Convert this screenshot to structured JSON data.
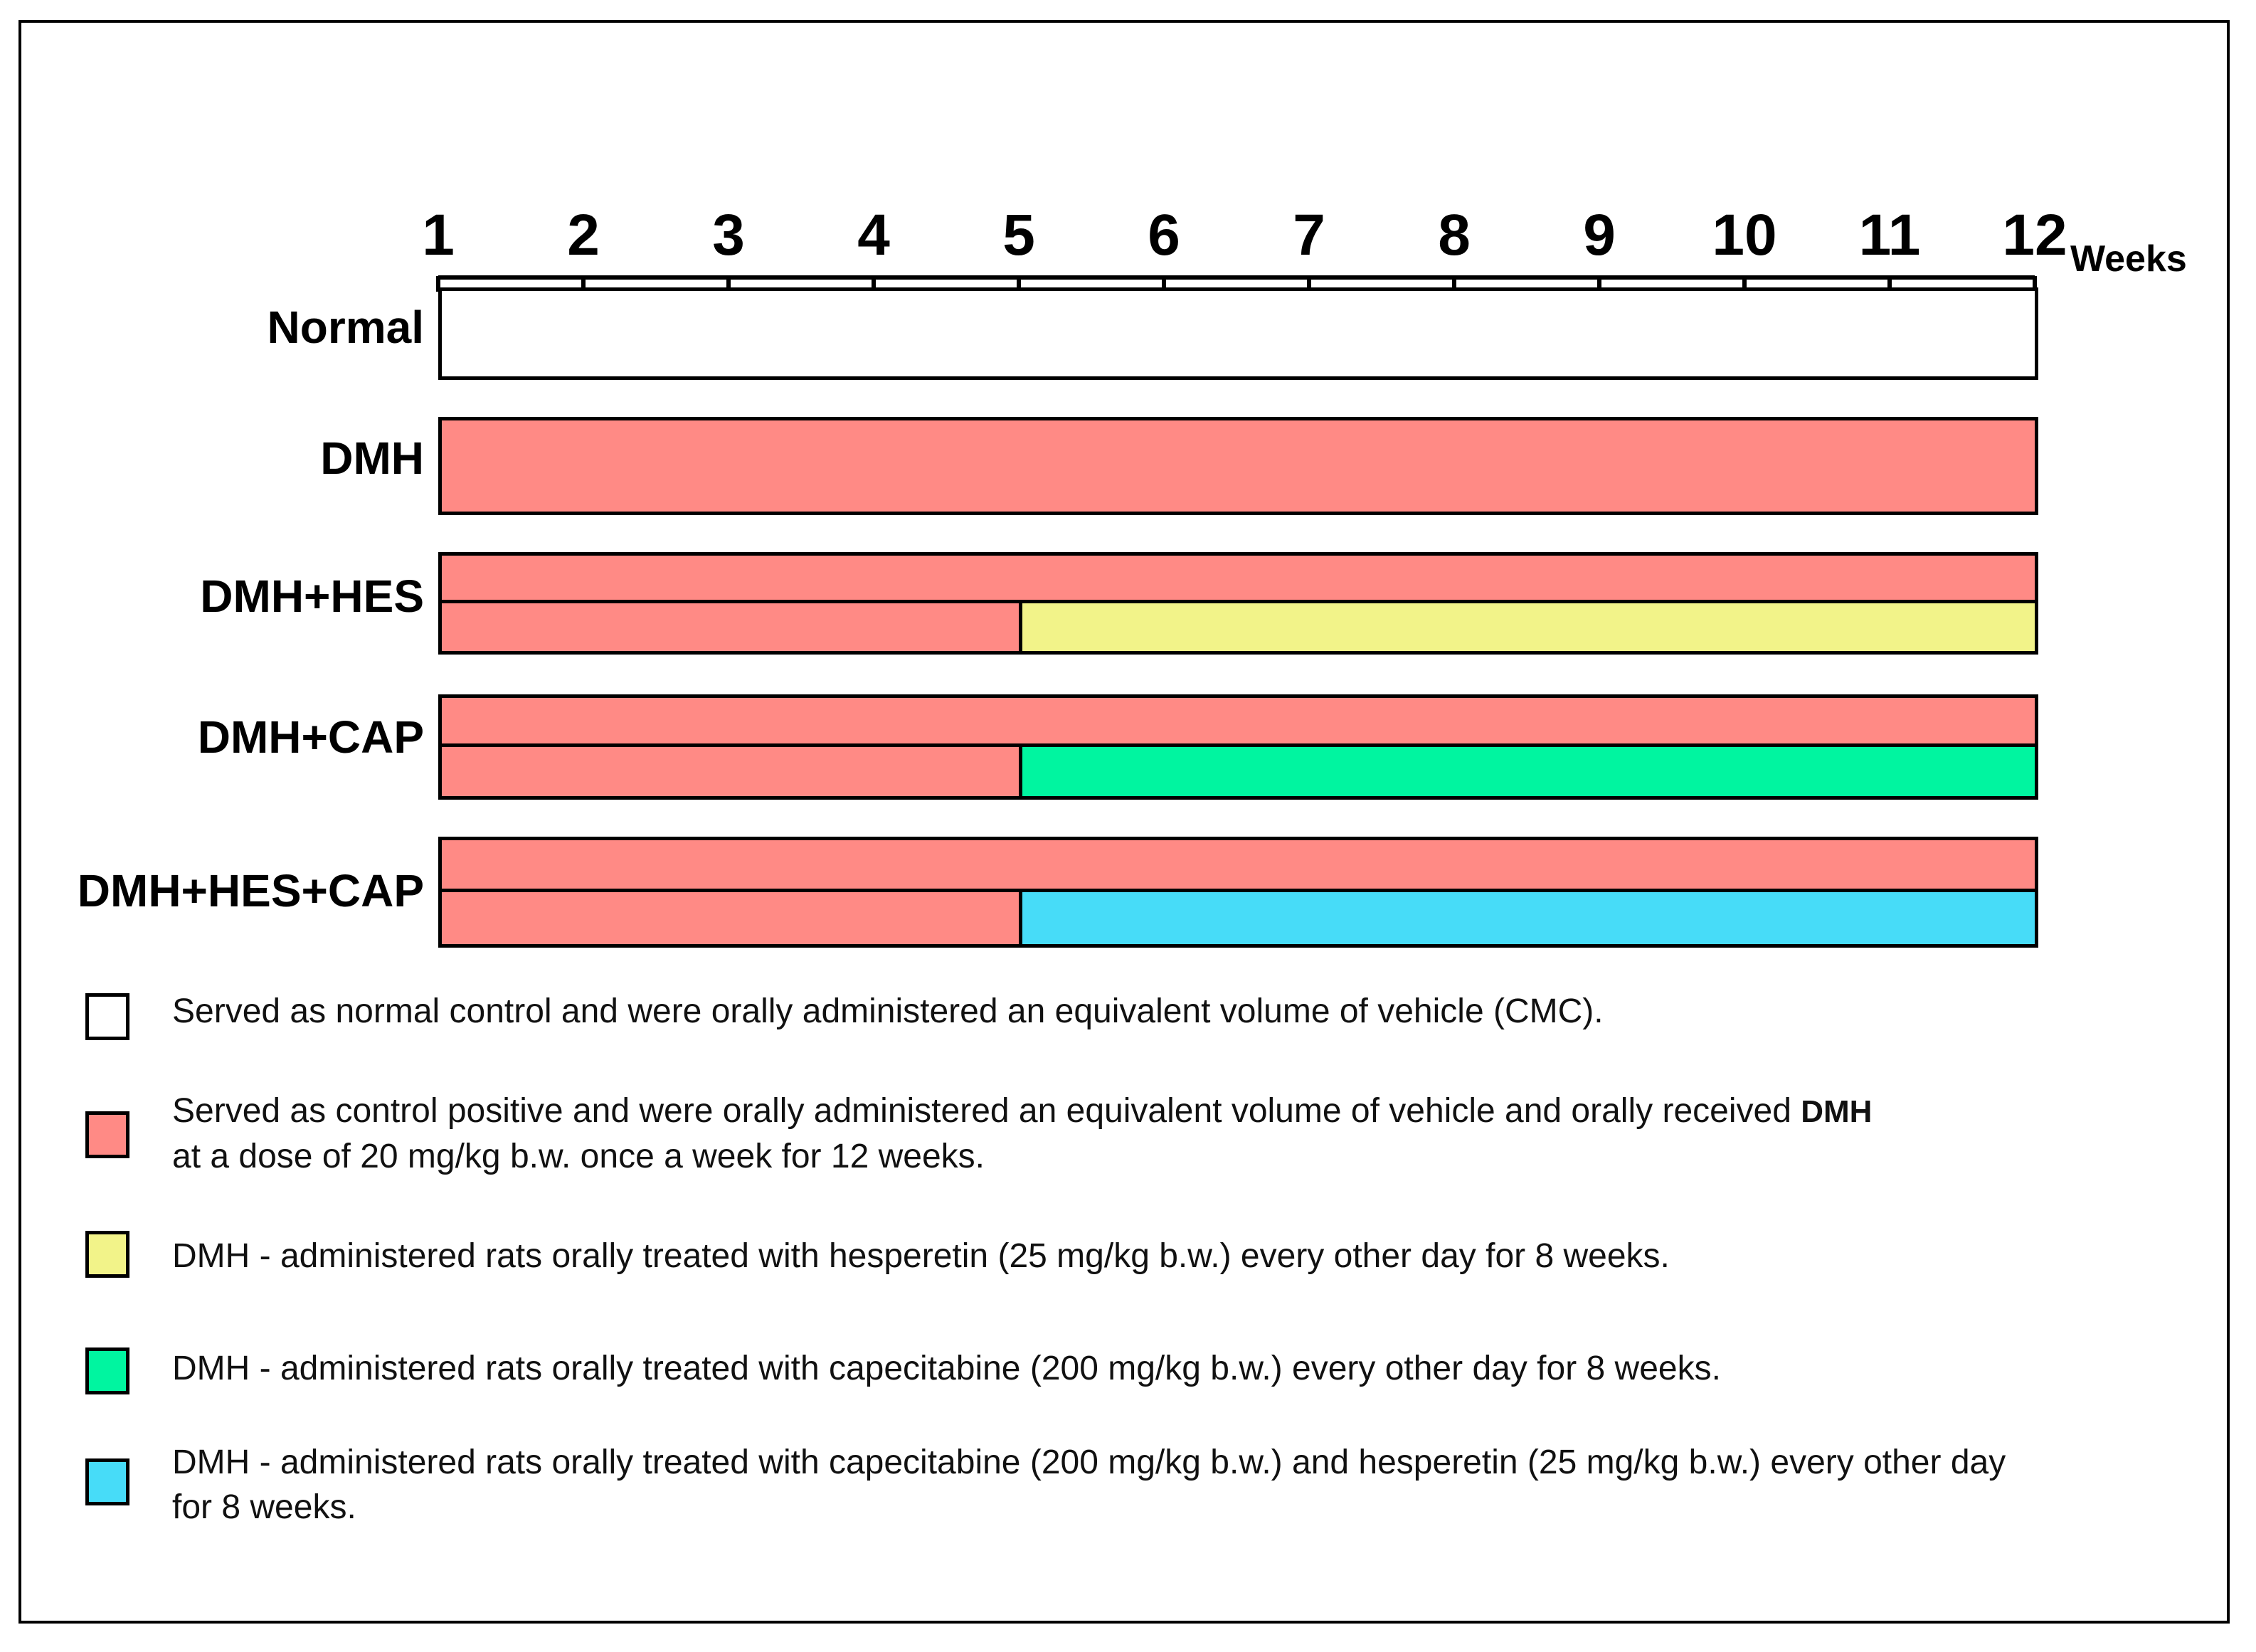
{
  "colors": {
    "normal": "#ffffff",
    "dmh": "#ff8a85",
    "hes": "#f2f389",
    "cap": "#00f5a0",
    "hes_cap": "#47dcf8",
    "outline": "#000000"
  },
  "timeline": {
    "unit": "Weeks",
    "ticks": [
      "1",
      "2",
      "3",
      "4",
      "5",
      "6",
      "7",
      "8",
      "9",
      "10",
      "11",
      "12"
    ]
  },
  "groups": [
    {
      "label": "Normal",
      "rows": [
        {
          "segments": [
            {
              "start": 1,
              "end": 12,
              "color": "normal"
            }
          ]
        }
      ]
    },
    {
      "label": "DMH",
      "rows": [
        {
          "segments": [
            {
              "start": 1,
              "end": 12,
              "color": "dmh"
            }
          ]
        }
      ]
    },
    {
      "label": "DMH+HES",
      "rows": [
        {
          "segments": [
            {
              "start": 1,
              "end": 12,
              "color": "dmh"
            }
          ]
        },
        {
          "segments": [
            {
              "start": 1,
              "end": 5,
              "color": "dmh"
            },
            {
              "start": 5,
              "end": 12,
              "color": "hes"
            }
          ]
        }
      ]
    },
    {
      "label": "DMH+CAP",
      "rows": [
        {
          "segments": [
            {
              "start": 1,
              "end": 12,
              "color": "dmh"
            }
          ]
        },
        {
          "segments": [
            {
              "start": 1,
              "end": 5,
              "color": "dmh"
            },
            {
              "start": 5,
              "end": 12,
              "color": "cap"
            }
          ]
        }
      ]
    },
    {
      "label": "DMH+HES+CAP",
      "rows": [
        {
          "segments": [
            {
              "start": 1,
              "end": 12,
              "color": "dmh"
            }
          ]
        },
        {
          "segments": [
            {
              "start": 1,
              "end": 5,
              "color": "dmh"
            },
            {
              "start": 5,
              "end": 12,
              "color": "hes_cap"
            }
          ]
        }
      ]
    }
  ],
  "legend": [
    {
      "color": "normal",
      "text": "Served as normal control and were orally administered an equivalent volume of vehicle (CMC)."
    },
    {
      "color": "dmh",
      "text": "Served as control positive and were orally administered an equivalent volume of vehicle and orally received",
      "bold_tail": "DMH",
      "text2": "at a dose of 20 mg/kg b.w. once a week for 12 weeks."
    },
    {
      "color": "hes",
      "text": "DMH - administered rats orally treated with hesperetin (25 mg/kg b.w.) every other day for 8 weeks."
    },
    {
      "color": "cap",
      "text": "DMH - administered rats orally treated with capecitabine (200 mg/kg b.w.) every other day for 8 weeks."
    },
    {
      "color": "hes_cap",
      "text": "DMH - administered rats orally treated with capecitabine (200 mg/kg b.w.) and hesperetin (25 mg/kg b.w.) every other day",
      "text2": "for 8 weeks."
    }
  ]
}
